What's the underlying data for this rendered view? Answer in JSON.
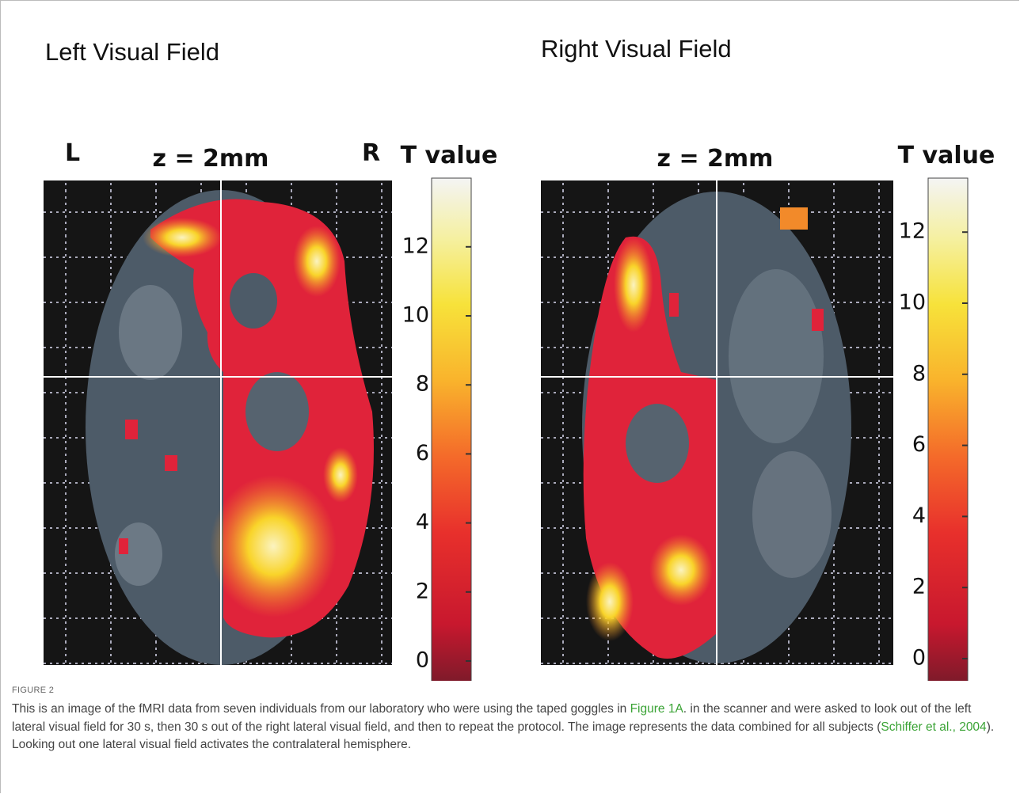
{
  "figure": {
    "panels": [
      {
        "title": "Left Visual Field",
        "left_label": "L",
        "slice": "z = 2mm",
        "right_label": "R",
        "colorbar_title": "T value",
        "colorbar_ticks": [
          0,
          2,
          4,
          6,
          8,
          10,
          12
        ]
      },
      {
        "title": "Right Visual Field",
        "slice": "z = 2mm",
        "colorbar_title": "T value",
        "colorbar_ticks": [
          0,
          2,
          4,
          6,
          8,
          10,
          12
        ]
      }
    ],
    "label": "FIGURE 2",
    "caption": [
      "This is an image of the fMRI data from seven individuals from our laboratory who were using the taped goggles in ",
      "Figure 1A",
      ". in the scanner and were asked to look out of the left lateral visual field for 30 s, then 30 s out of the right lateral visual field, and then to repeat the protocol. The image represents the data combined for all subjects (",
      "Schiffer et al., 2004",
      "). Looking out one lateral visual field activates the contralateral hemisphere."
    ]
  }
}
